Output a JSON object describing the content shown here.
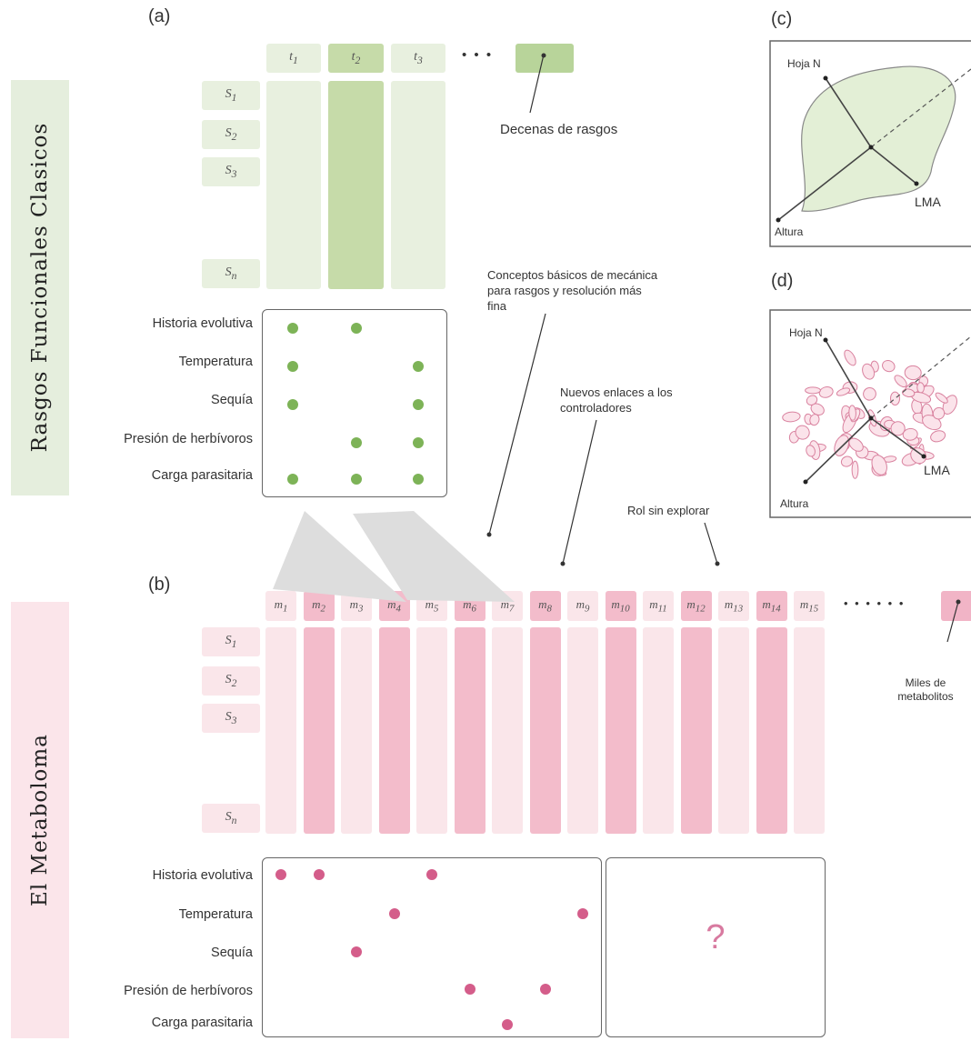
{
  "panels": {
    "a": "(a)",
    "b": "(b)",
    "c": "(c)",
    "d": "(d)"
  },
  "sidebars": {
    "top": "Rasgos Funcionales Clasicos",
    "bottom": "El Metaboloma"
  },
  "traits": {
    "columns": [
      "t1",
      "t2",
      "t3"
    ],
    "column_subs": [
      "1",
      "2",
      "3"
    ],
    "ellipsis": "• • •",
    "note": "Decenas de rasgos"
  },
  "species": {
    "rows": [
      {
        "sub": "1"
      },
      {
        "sub": "2"
      },
      {
        "sub": "3"
      },
      {
        "sub": "n"
      }
    ],
    "letter": "S"
  },
  "drivers": [
    "Historia evolutiva",
    "Temperatura",
    "Sequía",
    "Presión de herbívoros",
    "Carga parasitaria"
  ],
  "drivers_bottom": [
    "Historia evolutiva",
    "Temperatura",
    "Sequía",
    "Presión de herbívoros",
    "Carga parasitaria"
  ],
  "trait_matrix": [
    [
      1,
      1,
      0
    ],
    [
      1,
      0,
      1
    ],
    [
      1,
      0,
      1
    ],
    [
      0,
      1,
      1
    ],
    [
      1,
      1,
      1
    ]
  ],
  "metabolites": {
    "letter": "m",
    "subs": [
      "1",
      "2",
      "3",
      "4",
      "5",
      "6",
      "7",
      "8",
      "9",
      "10",
      "11",
      "12",
      "13",
      "14",
      "15"
    ],
    "ellipsis": "• • • • • •",
    "note": "Miles de metabolitos"
  },
  "metabolite_links": [
    [
      1,
      2,
      5
    ],
    [
      4,
      9
    ],
    [
      3
    ],
    [
      6,
      8
    ],
    [
      7
    ]
  ],
  "annotations": {
    "mechanics": "Conceptos básicos de mecánica para rasgos y resolución más fina",
    "links": "Nuevos enlaces a los controladores",
    "role": "Rol sin explorar",
    "unknown": "?"
  },
  "leaf": {
    "n": "Hoja N",
    "lma": "LMA",
    "height": "Altura"
  },
  "colors": {
    "green_light": "#e8f0df",
    "green_dark": "#c6dba9",
    "green_dot": "#7db357",
    "pink_light": "#fae6ea",
    "pink_dark": "#f3bccb",
    "pink_dot": "#d45d8a"
  }
}
